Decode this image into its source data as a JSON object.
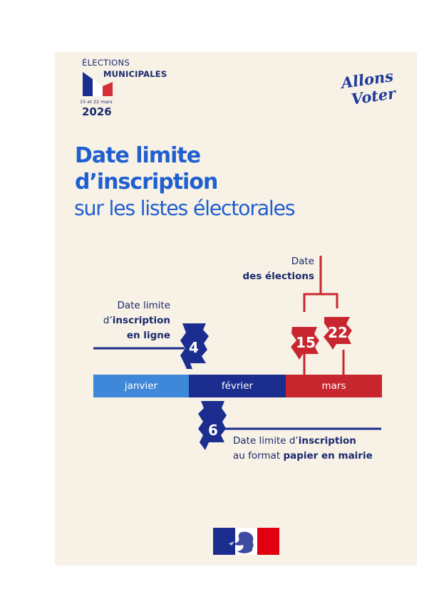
{
  "logo": {
    "line1": "ÉLECTIONS",
    "line2": "MUNICIPALES",
    "dates": "15 et 22 mars",
    "year": "2026"
  },
  "slogan": {
    "line1": "Allons",
    "line2": "Voter!"
  },
  "title": {
    "line1": "Date limite",
    "line2": "d’inscription",
    "subtitle": "sur les listes électorales"
  },
  "timeline": {
    "months": [
      "janvier",
      "février",
      "mars"
    ],
    "election_label": {
      "line1": "Date",
      "line2": "des élections"
    },
    "online_label": {
      "line1": "Date limite",
      "line2_prefix": "d’",
      "line2_bold": "inscription",
      "line3": "en ligne"
    },
    "paper_label": {
      "line1_prefix": "Date limite d’",
      "line1_bold": "inscription",
      "line2_prefix": "au format ",
      "line2_bold": "papier en mairie"
    },
    "days": {
      "online": "4",
      "paper": "6",
      "election1": "15",
      "election2": "22"
    }
  },
  "colors": {
    "navy": "#1b2d8f",
    "blue": "#3f88d9",
    "red": "#c8262f",
    "title_blue": "#1f5fcf",
    "background": "#f7f1e6"
  }
}
